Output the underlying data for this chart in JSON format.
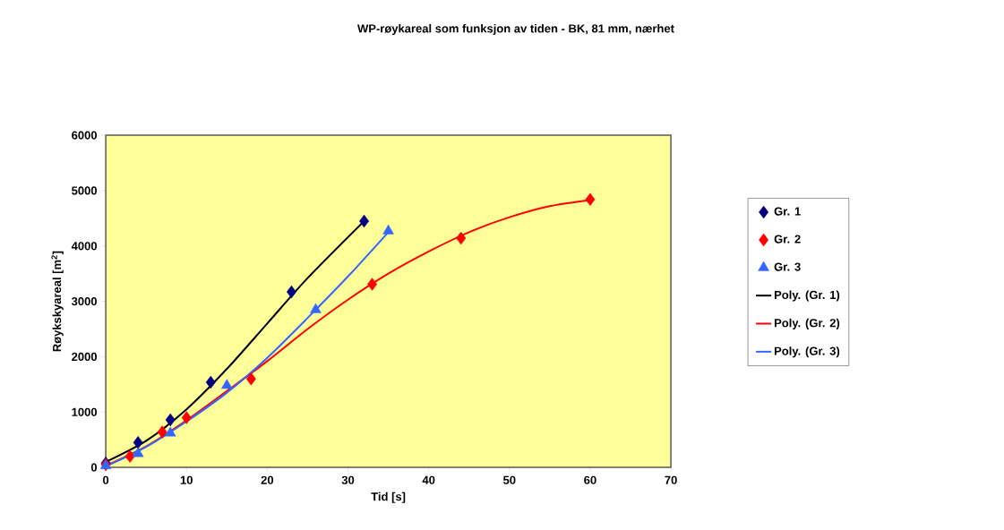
{
  "chart_data": {
    "type": "scatter",
    "title": "WP-røykareal som funksjon av tiden -  BK, 81 mm,  nærhet",
    "xlabel": "Tid [s]",
    "ylabel": "Røykskyareal [m$^{2}$]",
    "xlim": [
      0,
      70
    ],
    "xticks": [
      0,
      10,
      20,
      30,
      40,
      50,
      60,
      70
    ],
    "ylim": [
      0,
      6000
    ],
    "yticks": [
      0,
      1000,
      2000,
      3000,
      4000,
      5000,
      6000
    ],
    "grid": false,
    "legend": "right",
    "series": [
      {
        "name": "Gr. 1",
        "marker": "diamond",
        "color": "#000080",
        "x": [
          0,
          4,
          8,
          13,
          23,
          32
        ],
        "values": [
          80,
          450,
          860,
          1540,
          3170,
          4450
        ]
      },
      {
        "name": "Gr. 2",
        "marker": "diamond",
        "color": "#ff0000",
        "x": [
          0,
          3,
          7,
          10,
          18,
          33,
          44,
          60
        ],
        "values": [
          50,
          200,
          640,
          900,
          1600,
          3310,
          4140,
          4840
        ]
      },
      {
        "name": "Gr. 3",
        "marker": "triangle",
        "color": "#3366ff",
        "x": [
          0,
          4,
          8,
          15,
          26,
          35
        ],
        "values": [
          30,
          250,
          620,
          1480,
          2850,
          4270
        ]
      },
      {
        "name": "Poly. (Gr. 1)",
        "type": "line",
        "marker": "none",
        "line_style": "solid",
        "color": "#000000",
        "x": [
          0,
          5,
          10,
          15,
          20,
          25,
          32
        ],
        "values": [
          100,
          480,
          1050,
          1780,
          2600,
          3420,
          4450
        ]
      },
      {
        "name": "Poly. (Gr. 2)",
        "type": "line",
        "marker": "none",
        "line_style": "solid",
        "color": "#ff0000",
        "x": [
          0,
          5,
          10,
          15,
          20,
          25,
          30,
          35,
          40,
          45,
          50,
          55,
          60
        ],
        "values": [
          30,
          380,
          850,
          1380,
          1920,
          2500,
          3030,
          3500,
          3900,
          4250,
          4520,
          4720,
          4830
        ]
      },
      {
        "name": "Poly. (Gr. 3)",
        "type": "line",
        "marker": "none",
        "line_style": "solid",
        "color": "#3366ff",
        "x": [
          0,
          5,
          10,
          15,
          20,
          25,
          30,
          35
        ],
        "values": [
          20,
          370,
          830,
          1350,
          1980,
          2700,
          3450,
          4250
        ]
      }
    ]
  }
}
